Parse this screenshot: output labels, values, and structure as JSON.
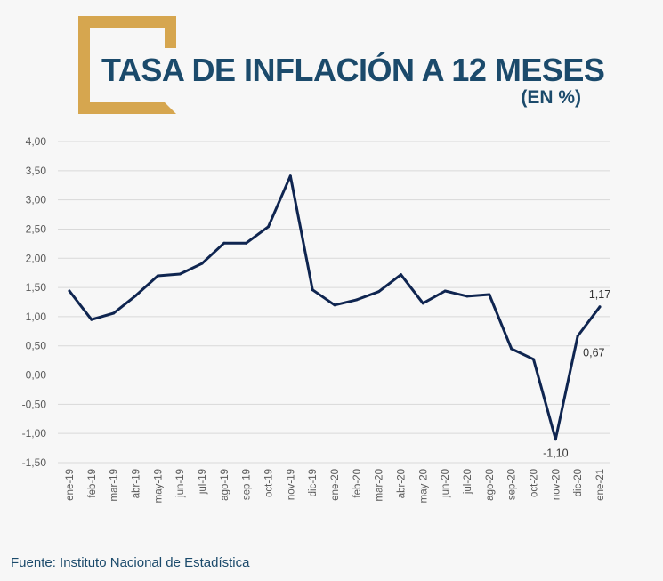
{
  "header": {
    "title": "TASA DE INFLACIÓN A 12 MESES",
    "subtitle": "(EN %)"
  },
  "footer": {
    "source": "Fuente: Instituto Nacional de Estadística"
  },
  "colors": {
    "line": "#0f2550",
    "accent": "#d6a64f",
    "title": "#1b4a6b",
    "grid": "#d9d9d9",
    "axis_text": "#595959"
  },
  "chart_data": {
    "type": "line",
    "title": "TASA DE INFLACIÓN A 12 MESES",
    "subtitle": "(EN %)",
    "xlabel": "",
    "ylabel": "",
    "ylim": [
      -1.5,
      4.0
    ],
    "yticks": [
      "4,00",
      "3,50",
      "3,00",
      "2,50",
      "2,00",
      "1,50",
      "1,00",
      "0,50",
      "0,00",
      "-0,50",
      "-1,00",
      "-1,50"
    ],
    "categories": [
      "ene-19",
      "feb-19",
      "mar-19",
      "abr-19",
      "may-19",
      "jun-19",
      "jul-19",
      "ago-19",
      "sep-19",
      "oct-19",
      "nov-19",
      "dic-19",
      "ene-20",
      "feb-20",
      "mar-20",
      "abr-20",
      "may-20",
      "jun-20",
      "jul-20",
      "ago-20",
      "sep-20",
      "oct-20",
      "nov-20",
      "dic-20",
      "ene-21"
    ],
    "series": [
      {
        "name": "Tasa de inflación a 12 meses",
        "values": [
          1.44,
          0.95,
          1.06,
          1.36,
          1.7,
          1.73,
          1.91,
          2.26,
          2.26,
          2.54,
          3.41,
          1.46,
          1.2,
          1.29,
          1.43,
          1.72,
          1.23,
          1.44,
          1.35,
          1.38,
          0.45,
          0.27,
          -1.1,
          0.67,
          1.17
        ]
      }
    ],
    "data_labels": [
      {
        "index": 22,
        "text": "-1,10",
        "position": "below"
      },
      {
        "index": 23,
        "text": "0,67",
        "position": "below-right"
      },
      {
        "index": 24,
        "text": "1,17",
        "position": "above"
      }
    ],
    "grid": true,
    "legend": "none"
  }
}
